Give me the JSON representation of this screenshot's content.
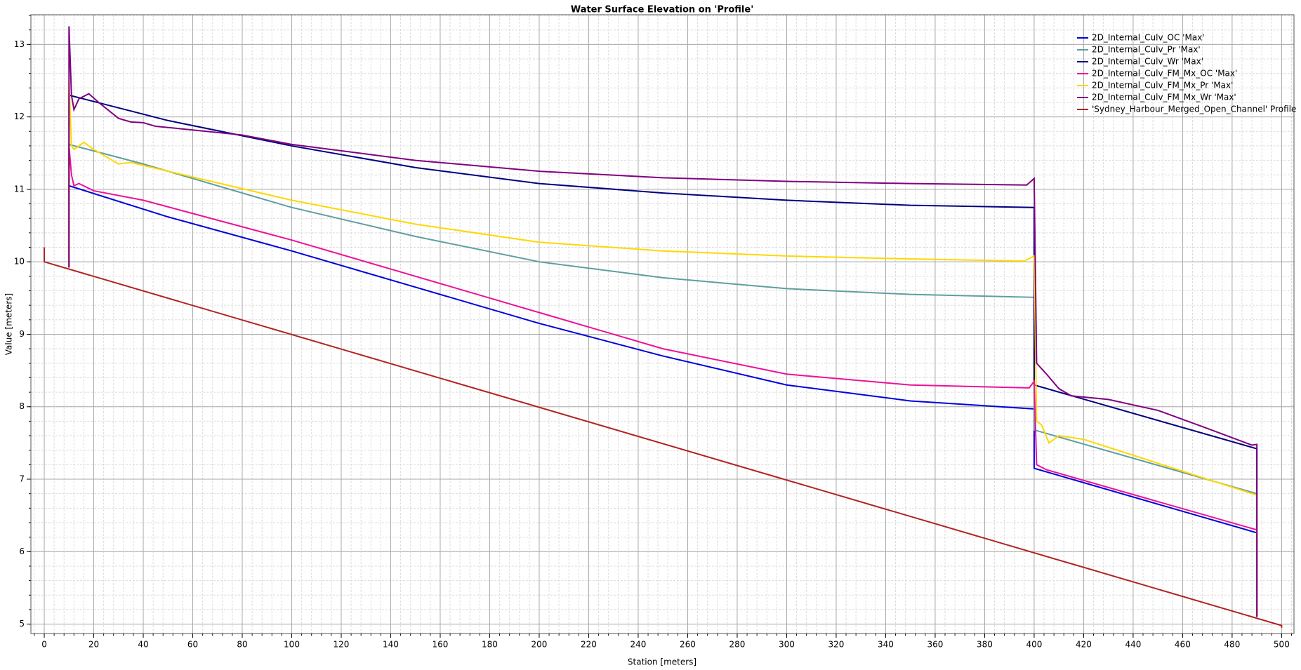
{
  "chart_data": {
    "type": "line",
    "title": "Water Surface Elevation on 'Profile'",
    "x_label": "Station [meters]",
    "y_label": "Value [meters]",
    "xlim": [
      -5.4,
      505
    ],
    "ylim": [
      4.87,
      13.41
    ],
    "xticks": [
      0,
      20,
      40,
      60,
      80,
      100,
      120,
      140,
      160,
      180,
      200,
      220,
      240,
      260,
      280,
      300,
      320,
      340,
      360,
      380,
      400,
      420,
      440,
      460,
      480,
      500
    ],
    "yticks": [
      5,
      6,
      7,
      8,
      9,
      10,
      11,
      12,
      13
    ],
    "grid": true,
    "minor_grid": true,
    "legend": "upper right",
    "series": [
      {
        "name": "2D_Internal_Culv_OC 'Max'",
        "color": "#0000dd",
        "x": [
          10,
          10,
          50,
          100,
          150,
          200,
          250,
          300,
          350,
          400,
          400,
          490,
          490
        ],
        "values": [
          9.92,
          11.05,
          10.62,
          10.15,
          9.65,
          9.15,
          8.7,
          8.3,
          8.08,
          7.97,
          7.15,
          6.26,
          5.1
        ]
      },
      {
        "name": "2D_Internal_Culv_Pr 'Max'",
        "color": "#5f9ea0",
        "x": [
          10,
          10,
          40,
          100,
          150,
          200,
          250,
          300,
          350,
          400,
          400,
          490,
          490
        ],
        "values": [
          9.92,
          11.62,
          11.35,
          10.75,
          10.35,
          10.0,
          9.78,
          9.63,
          9.55,
          9.51,
          7.68,
          6.8,
          5.1
        ]
      },
      {
        "name": "2D_Internal_Culv_Wr 'Max'",
        "color": "#000080",
        "x": [
          10,
          10,
          50,
          100,
          150,
          200,
          250,
          300,
          350,
          400,
          400,
          490,
          490
        ],
        "values": [
          9.92,
          12.3,
          11.95,
          11.6,
          11.3,
          11.08,
          10.95,
          10.85,
          10.78,
          10.75,
          8.3,
          7.42,
          5.1
        ]
      },
      {
        "name": "2D_Internal_Culv_FM_Mx_OC 'Max'",
        "color": "#ee1199",
        "x": [
          10,
          10,
          11,
          12,
          14,
          20,
          40,
          100,
          150,
          200,
          250,
          300,
          350,
          398,
          400,
          401,
          405,
          490,
          490
        ],
        "values": [
          9.92,
          11.6,
          11.2,
          11.05,
          11.08,
          10.98,
          10.85,
          10.3,
          9.8,
          9.3,
          8.8,
          8.45,
          8.3,
          8.26,
          8.35,
          7.2,
          7.13,
          6.3,
          5.1
        ]
      },
      {
        "name": "2D_Internal_Culv_FM_Mx_Pr 'Max'",
        "color": "#ffd700",
        "x": [
          10,
          10,
          11,
          12,
          16,
          20,
          30,
          35,
          50,
          100,
          150,
          200,
          250,
          300,
          350,
          396,
          400,
          401,
          403,
          406,
          410,
          420,
          490,
          490
        ],
        "values": [
          9.92,
          12.5,
          11.6,
          11.55,
          11.65,
          11.55,
          11.35,
          11.37,
          11.25,
          10.85,
          10.52,
          10.27,
          10.15,
          10.08,
          10.04,
          10.01,
          10.08,
          7.8,
          7.75,
          7.5,
          7.6,
          7.55,
          6.78,
          5.1
        ]
      },
      {
        "name": "2D_Internal_Culv_FM_Mx_Wr 'Max'",
        "color": "#800080",
        "x": [
          10,
          10,
          11,
          12,
          14,
          18,
          22,
          30,
          35,
          40,
          45,
          60,
          80,
          100,
          150,
          200,
          250,
          300,
          350,
          397,
          400,
          401,
          405,
          410,
          415,
          430,
          450,
          470,
          488,
          490,
          490
        ],
        "values": [
          9.92,
          13.25,
          12.3,
          12.1,
          12.25,
          12.32,
          12.2,
          11.98,
          11.93,
          11.92,
          11.87,
          11.82,
          11.75,
          11.62,
          11.4,
          11.25,
          11.16,
          11.11,
          11.08,
          11.06,
          11.15,
          8.6,
          8.45,
          8.25,
          8.15,
          8.1,
          7.95,
          7.7,
          7.47,
          7.48,
          5.1
        ]
      },
      {
        "name": "'Sydney_Harbour_Merged_Open_Channel' Profile",
        "color": "#b22222",
        "x": [
          0,
          0,
          500,
          500
        ],
        "values": [
          10.2,
          10.0,
          4.98,
          4.95
        ]
      }
    ]
  }
}
